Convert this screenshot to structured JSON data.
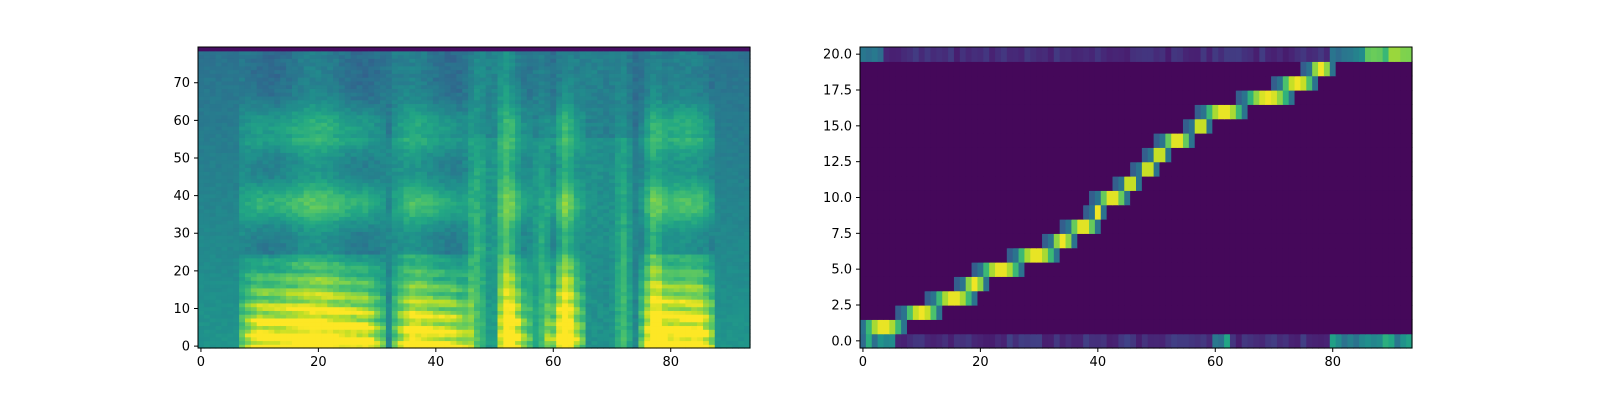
{
  "chart_data": [
    {
      "type": "heatmap",
      "title": "",
      "xlabel": "",
      "ylabel": "",
      "xlim": [
        -0.5,
        93.5
      ],
      "ylim": [
        -0.5,
        79.5
      ],
      "xticks": [
        0,
        20,
        40,
        60,
        80
      ],
      "yticks": [
        0,
        10,
        20,
        30,
        40,
        50,
        60,
        70
      ],
      "colormap": "viridis",
      "n_frames": 94,
      "n_bins": 80,
      "silent_frames": [
        [
          0,
          6
        ],
        [
          88,
          93
        ]
      ],
      "voiced_regions": [
        {
          "start": 7,
          "end": 31,
          "strength": 0.95
        },
        {
          "start": 33,
          "end": 46,
          "strength": 0.85
        },
        {
          "start": 51,
          "end": 56,
          "strength": 0.8
        },
        {
          "start": 59,
          "end": 65,
          "strength": 0.8
        },
        {
          "start": 75,
          "end": 88,
          "strength": 0.88
        }
      ],
      "bright_vertical_bands": [
        47,
        52,
        58,
        62,
        72,
        77
      ]
    },
    {
      "type": "heatmap",
      "title": "",
      "xlabel": "",
      "ylabel": "",
      "xlim": [
        -0.5,
        93.5
      ],
      "ylim": [
        -0.5,
        20.5
      ],
      "xticks": [
        0,
        20,
        40,
        60,
        80
      ],
      "yticks": [
        "0.0",
        "2.5",
        "5.0",
        "7.5",
        "10.0",
        "12.5",
        "15.0",
        "17.5",
        "20.0"
      ],
      "colormap": "viridis",
      "n_frames": 94,
      "n_tokens": 21,
      "alignment_segments": [
        {
          "token": 1,
          "start": 0,
          "end": 7
        },
        {
          "token": 2,
          "start": 7,
          "end": 13
        },
        {
          "token": 3,
          "start": 12,
          "end": 19
        },
        {
          "token": 4,
          "start": 17,
          "end": 21
        },
        {
          "token": 5,
          "start": 20,
          "end": 27
        },
        {
          "token": 6,
          "start": 26,
          "end": 33
        },
        {
          "token": 7,
          "start": 32,
          "end": 36
        },
        {
          "token": 8,
          "start": 35,
          "end": 40
        },
        {
          "token": 9,
          "start": 39,
          "end": 41
        },
        {
          "token": 10,
          "start": 40,
          "end": 45
        },
        {
          "token": 11,
          "start": 44,
          "end": 47
        },
        {
          "token": 12,
          "start": 47,
          "end": 50
        },
        {
          "token": 13,
          "start": 49,
          "end": 52
        },
        {
          "token": 14,
          "start": 51,
          "end": 56
        },
        {
          "token": 15,
          "start": 56,
          "end": 59
        },
        {
          "token": 16,
          "start": 58,
          "end": 65
        },
        {
          "token": 17,
          "start": 65,
          "end": 73
        },
        {
          "token": 18,
          "start": 71,
          "end": 77
        },
        {
          "token": 19,
          "start": 76,
          "end": 80
        }
      ],
      "token_0_active_frames": [
        [
          0,
          5
        ],
        [
          60,
          62
        ],
        [
          80,
          93
        ]
      ],
      "token_20_active_frames": [
        [
          0,
          3
        ],
        [
          80,
          93
        ]
      ]
    }
  ]
}
